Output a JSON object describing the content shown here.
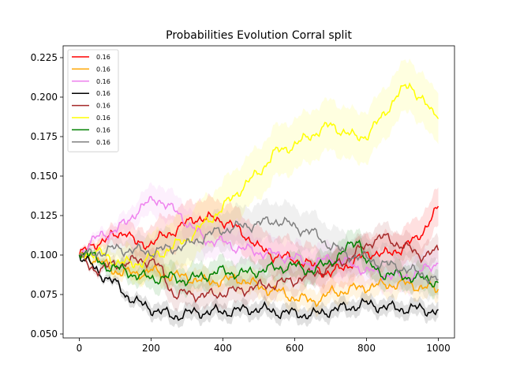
{
  "chart_data": {
    "type": "line",
    "title": "Probabilities Evolution Corral split",
    "xlabel": "",
    "ylabel": "",
    "xlim": [
      -45,
      1045
    ],
    "ylim": [
      0.0475,
      0.2325
    ],
    "xticks": [
      0,
      200,
      400,
      600,
      800,
      1000
    ],
    "yticks": [
      0.05,
      0.075,
      0.1,
      0.125,
      0.15,
      0.175,
      0.2,
      0.225
    ],
    "xtick_labels": [
      "0",
      "200",
      "400",
      "600",
      "800",
      "1000"
    ],
    "ytick_labels": [
      "0.050",
      "0.075",
      "0.100",
      "0.125",
      "0.150",
      "0.175",
      "0.200",
      "0.225"
    ],
    "grid": false,
    "legend_position": "top-left",
    "series": [
      {
        "name": "0.16",
        "color": "#ff0000",
        "band": 0.012,
        "x": [
          0,
          25,
          50,
          75,
          100,
          130,
          160,
          200,
          240,
          280,
          300,
          330,
          360,
          400,
          420,
          450,
          480,
          500,
          540,
          580,
          620,
          660,
          700,
          740,
          780,
          820,
          860,
          900,
          940,
          970,
          1000
        ],
        "values": [
          0.1,
          0.104,
          0.108,
          0.11,
          0.112,
          0.116,
          0.106,
          0.108,
          0.112,
          0.118,
          0.12,
          0.124,
          0.123,
          0.122,
          0.12,
          0.114,
          0.11,
          0.104,
          0.1,
          0.098,
          0.096,
          0.092,
          0.088,
          0.093,
          0.098,
          0.102,
          0.1,
          0.105,
          0.11,
          0.12,
          0.129
        ]
      },
      {
        "name": "0.16",
        "color": "#ffa500",
        "band": 0.007,
        "x": [
          0,
          30,
          60,
          100,
          150,
          200,
          250,
          300,
          350,
          400,
          450,
          500,
          550,
          600,
          650,
          680,
          700,
          750,
          800,
          850,
          900,
          950,
          1000
        ],
        "values": [
          0.1,
          0.099,
          0.095,
          0.09,
          0.088,
          0.09,
          0.087,
          0.086,
          0.083,
          0.084,
          0.085,
          0.08,
          0.077,
          0.073,
          0.071,
          0.073,
          0.076,
          0.078,
          0.08,
          0.081,
          0.082,
          0.08,
          0.078
        ]
      },
      {
        "name": "0.16",
        "color": "#ee82ee",
        "band": 0.01,
        "x": [
          0,
          30,
          60,
          100,
          130,
          160,
          200,
          220,
          250,
          280,
          310,
          350,
          400,
          450,
          500,
          550,
          600,
          650,
          700,
          750,
          800,
          850,
          900,
          950,
          1000
        ],
        "values": [
          0.1,
          0.108,
          0.112,
          0.116,
          0.12,
          0.128,
          0.134,
          0.136,
          0.13,
          0.126,
          0.118,
          0.11,
          0.108,
          0.104,
          0.102,
          0.1,
          0.098,
          0.094,
          0.098,
          0.095,
          0.09,
          0.088,
          0.086,
          0.089,
          0.096
        ]
      },
      {
        "name": "0.16",
        "color": "#000000",
        "band": 0.005,
        "x": [
          0,
          30,
          60,
          100,
          130,
          160,
          200,
          230,
          260,
          300,
          350,
          400,
          450,
          500,
          550,
          600,
          650,
          700,
          750,
          800,
          850,
          900,
          950,
          1000
        ],
        "values": [
          0.1,
          0.094,
          0.088,
          0.082,
          0.075,
          0.07,
          0.066,
          0.064,
          0.061,
          0.063,
          0.064,
          0.064,
          0.065,
          0.066,
          0.064,
          0.063,
          0.062,
          0.065,
          0.067,
          0.069,
          0.067,
          0.066,
          0.066,
          0.064
        ]
      },
      {
        "name": "0.16",
        "color": "#a52a2a",
        "band": 0.008,
        "x": [
          0,
          30,
          60,
          100,
          150,
          200,
          230,
          250,
          270,
          300,
          350,
          400,
          450,
          500,
          550,
          600,
          650,
          700,
          750,
          800,
          820,
          850,
          900,
          950,
          1000
        ],
        "values": [
          0.1,
          0.092,
          0.091,
          0.094,
          0.096,
          0.097,
          0.09,
          0.08,
          0.074,
          0.076,
          0.074,
          0.076,
          0.078,
          0.08,
          0.082,
          0.084,
          0.088,
          0.092,
          0.098,
          0.106,
          0.11,
          0.111,
          0.106,
          0.1,
          0.102
        ]
      },
      {
        "name": "0.16",
        "color": "#ffff00",
        "band": 0.016,
        "x": [
          0,
          30,
          60,
          100,
          150,
          200,
          250,
          300,
          350,
          400,
          450,
          500,
          540,
          580,
          620,
          660,
          700,
          740,
          770,
          800,
          840,
          880,
          920,
          950,
          980,
          1000
        ],
        "values": [
          0.1,
          0.102,
          0.101,
          0.096,
          0.094,
          0.098,
          0.104,
          0.11,
          0.12,
          0.13,
          0.142,
          0.152,
          0.164,
          0.168,
          0.172,
          0.178,
          0.182,
          0.178,
          0.174,
          0.176,
          0.186,
          0.2,
          0.208,
          0.2,
          0.19,
          0.19
        ]
      },
      {
        "name": "0.16",
        "color": "#008000",
        "band": 0.008,
        "x": [
          0,
          20,
          50,
          80,
          100,
          150,
          200,
          250,
          300,
          350,
          400,
          450,
          500,
          550,
          600,
          650,
          700,
          740,
          760,
          780,
          800,
          850,
          900,
          950,
          1000
        ],
        "values": [
          0.1,
          0.103,
          0.096,
          0.093,
          0.092,
          0.088,
          0.085,
          0.086,
          0.084,
          0.087,
          0.09,
          0.088,
          0.09,
          0.092,
          0.093,
          0.09,
          0.096,
          0.102,
          0.108,
          0.11,
          0.094,
          0.088,
          0.087,
          0.085,
          0.083
        ]
      },
      {
        "name": "0.16",
        "color": "#808080",
        "band": 0.012,
        "x": [
          0,
          30,
          60,
          100,
          150,
          200,
          250,
          300,
          350,
          400,
          450,
          500,
          550,
          600,
          650,
          700,
          750,
          800,
          850,
          900,
          950,
          1000
        ],
        "values": [
          0.1,
          0.1,
          0.102,
          0.104,
          0.103,
          0.102,
          0.104,
          0.106,
          0.112,
          0.116,
          0.118,
          0.12,
          0.122,
          0.118,
          0.114,
          0.106,
          0.1,
          0.098,
          0.094,
          0.092,
          0.088,
          0.084
        ]
      }
    ]
  }
}
